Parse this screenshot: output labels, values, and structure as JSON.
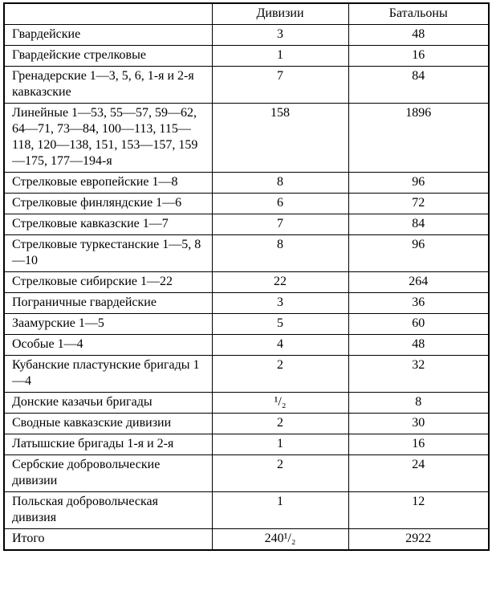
{
  "table": {
    "header": {
      "corner": "",
      "divisions": "Дивизии",
      "battalions": "Батальоны"
    },
    "rows": [
      {
        "name": "Гвардейские",
        "divisions": "3",
        "battalions": "48"
      },
      {
        "name": "Гвардейские стрелковые",
        "divisions": "1",
        "battalions": "16"
      },
      {
        "name": "Гренадерские 1—3, 5, 6, 1-я и 2-я кавказские",
        "divisions": "7",
        "battalions": "84"
      },
      {
        "name": "Линейные 1—53, 55—57, 59—62, 64—71, 73—84, 100—113, 115—118, 120—138, 151, 153—157, 159—175, 177—194-я",
        "divisions": "158",
        "battalions": "1896"
      },
      {
        "name": "Стрелковые европейские 1—8",
        "divisions": "8",
        "battalions": "96"
      },
      {
        "name": "Стрелковые финляндские 1—6",
        "divisions": "6",
        "battalions": "72"
      },
      {
        "name": "Стрелковые кавказские 1—7",
        "divisions": "7",
        "battalions": "84"
      },
      {
        "name": "Стрелковые туркестанские 1—5, 8—10",
        "divisions": "8",
        "battalions": "96"
      },
      {
        "name": "Стрелковые сибирские 1—22",
        "divisions": "22",
        "battalions": "264"
      },
      {
        "name": "Пограничные гвардейские",
        "divisions": "3",
        "battalions": "36"
      },
      {
        "name": "Заамурские 1—5",
        "divisions": "5",
        "battalions": "60"
      },
      {
        "name": "Особые 1—4",
        "divisions": "4",
        "battalions": "48"
      },
      {
        "name": "Кубанские пластунские бригады 1—4",
        "divisions": "2",
        "battalions": "32"
      },
      {
        "name": "Донские казачьи бригады",
        "divisions": "¹/₂",
        "battalions": "8"
      },
      {
        "name": "Сводные кавказские дивизии",
        "divisions": "2",
        "battalions": "30"
      },
      {
        "name": "Латышские бригады 1-я и 2-я",
        "divisions": "1",
        "battalions": "16"
      },
      {
        "name": "Сербские добровольческие дивизии",
        "divisions": "2",
        "battalions": "24"
      },
      {
        "name": "Польская добровольческая дивизия",
        "divisions": "1",
        "battalions": "12"
      },
      {
        "name": "Итого",
        "divisions": "240¹/₂",
        "battalions": "2922"
      }
    ]
  }
}
